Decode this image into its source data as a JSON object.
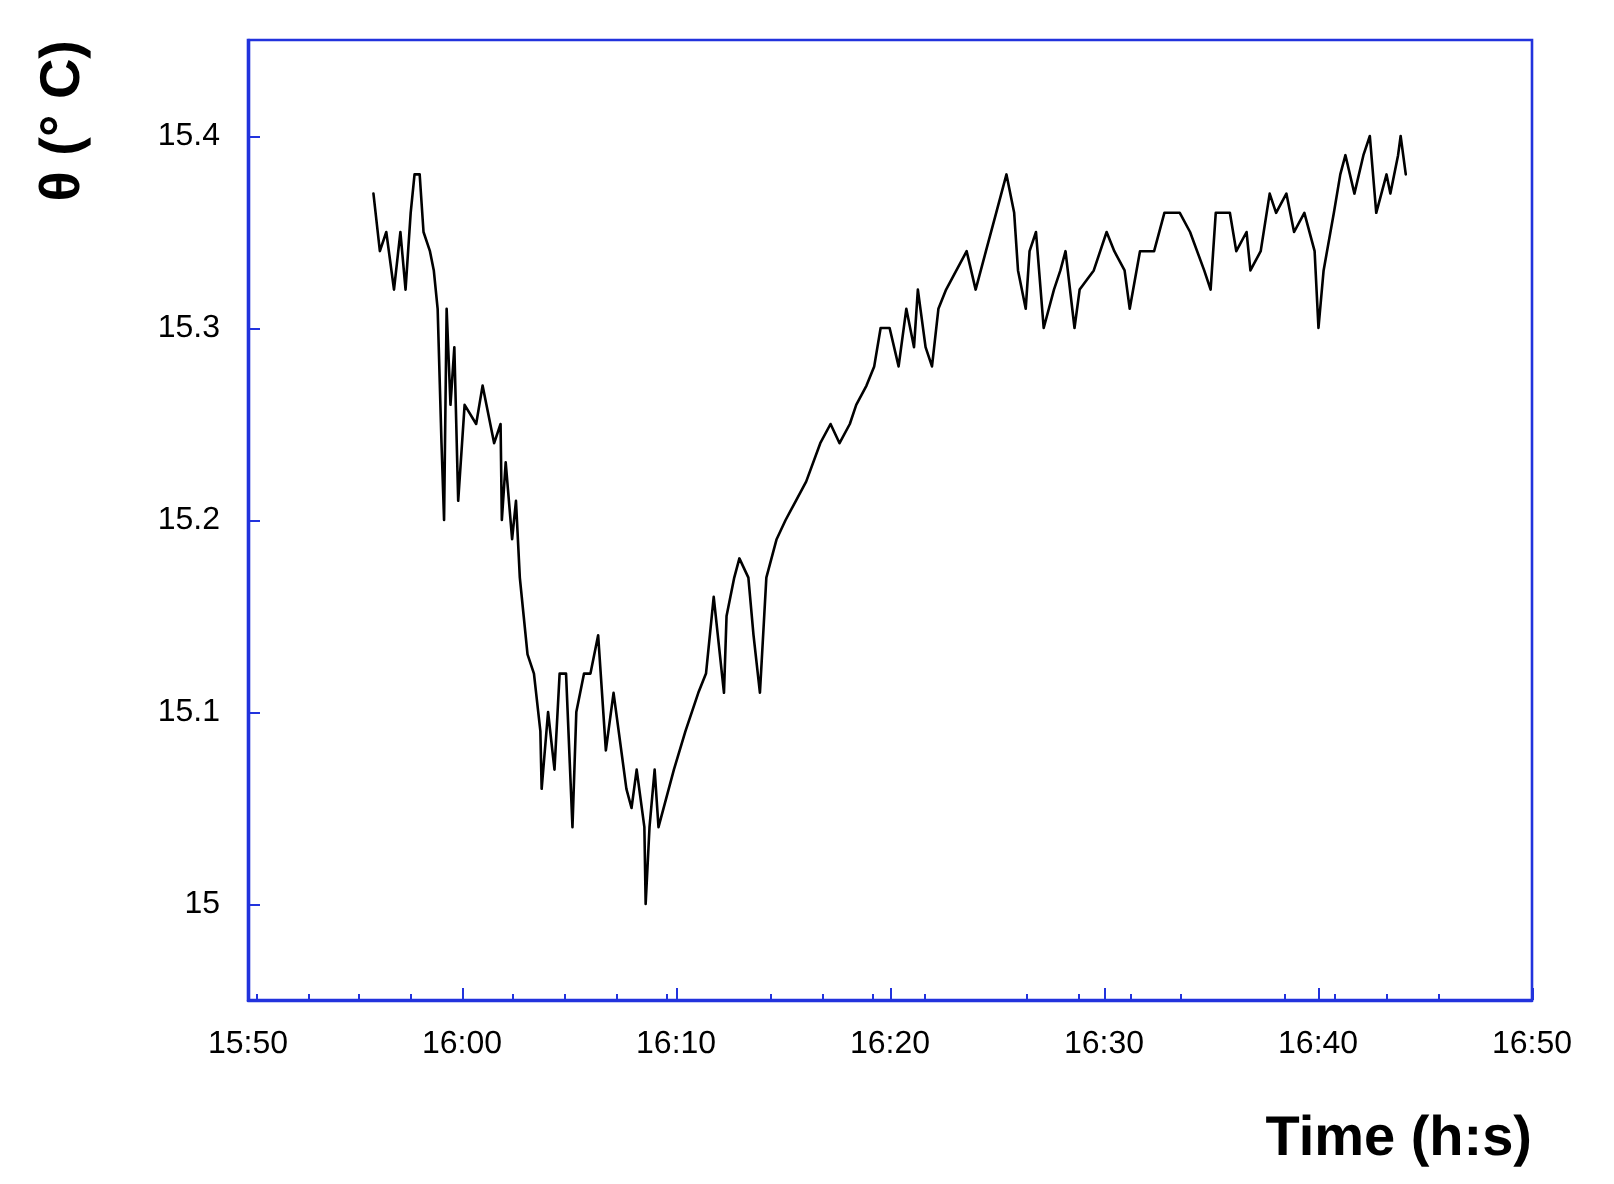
{
  "chart_data": {
    "type": "line",
    "xlabel": "Time (h:s)",
    "ylabel": "θ (° C)",
    "xlim": [
      15.8333,
      16.8333
    ],
    "ylim": [
      14.95,
      15.45
    ],
    "xticks": [
      {
        "value": 15.8333,
        "label": "15:50"
      },
      {
        "value": 16.0,
        "label": "16:00"
      },
      {
        "value": 16.1667,
        "label": "16:10"
      },
      {
        "value": 16.3333,
        "label": "16:20"
      },
      {
        "value": 16.5,
        "label": "16:30"
      },
      {
        "value": 16.6667,
        "label": "16:40"
      },
      {
        "value": 16.8333,
        "label": "16:50"
      }
    ],
    "yticks": [
      15,
      15.1,
      15.2,
      15.3,
      15.4
    ],
    "grid": false,
    "marker": "none",
    "line_style": "solid",
    "series": [
      {
        "color": "#000000",
        "x": [
          15.931,
          15.936,
          15.941,
          15.947,
          15.952,
          15.956,
          15.96,
          15.963,
          15.967,
          15.97,
          15.975,
          15.978,
          15.981,
          15.984,
          15.986,
          15.988,
          15.991,
          15.994,
          15.997,
          16.002,
          16.011,
          16.016,
          16.019,
          16.025,
          16.03,
          16.031,
          16.034,
          16.039,
          16.042,
          16.045,
          16.048,
          16.051,
          16.056,
          16.061,
          16.062,
          16.067,
          16.072,
          16.076,
          16.081,
          16.086,
          16.089,
          16.095,
          16.1,
          16.106,
          16.112,
          16.118,
          16.128,
          16.132,
          16.136,
          16.142,
          16.143,
          16.146,
          16.15,
          16.153,
          16.165,
          16.174,
          16.184,
          16.19,
          16.196,
          16.204,
          16.206,
          16.212,
          16.216,
          16.223,
          16.227,
          16.232,
          16.237,
          16.245,
          16.252,
          16.26,
          16.268,
          16.279,
          16.287,
          16.294,
          16.302,
          16.307,
          16.315,
          16.321,
          16.326,
          16.333,
          16.34,
          16.346,
          16.352,
          16.355,
          16.361,
          16.366,
          16.371,
          16.377,
          16.385,
          16.393,
          16.4,
          16.408,
          16.416,
          16.424,
          16.43,
          16.433,
          16.439,
          16.442,
          16.447,
          16.453,
          16.461,
          16.466,
          16.47,
          16.477,
          16.481,
          16.492,
          16.502,
          16.508,
          16.516,
          16.52,
          16.528,
          16.539,
          16.547,
          16.559,
          16.567,
          16.578,
          16.583,
          16.587,
          16.598,
          16.603,
          16.611,
          16.614,
          16.622,
          16.629,
          16.634,
          16.642,
          16.648,
          16.656,
          16.664,
          16.667,
          16.671,
          16.679,
          16.684,
          16.688,
          16.695,
          16.702,
          16.707,
          16.712,
          16.72,
          16.723,
          16.729,
          16.731,
          16.735
        ],
        "values": [
          15.37,
          15.34,
          15.35,
          15.32,
          15.35,
          15.32,
          15.36,
          15.38,
          15.38,
          15.35,
          15.34,
          15.33,
          15.31,
          15.24,
          15.2,
          15.31,
          15.26,
          15.29,
          15.21,
          15.26,
          15.25,
          15.27,
          15.26,
          15.24,
          15.25,
          15.2,
          15.23,
          15.19,
          15.21,
          15.17,
          15.15,
          15.13,
          15.12,
          15.09,
          15.06,
          15.1,
          15.07,
          15.12,
          15.12,
          15.04,
          15.1,
          15.12,
          15.12,
          15.14,
          15.08,
          15.11,
          15.06,
          15.05,
          15.07,
          15.04,
          15.0,
          15.04,
          15.07,
          15.04,
          15.07,
          15.09,
          15.11,
          15.12,
          15.16,
          15.11,
          15.15,
          15.17,
          15.18,
          15.17,
          15.14,
          15.11,
          15.17,
          15.19,
          15.2,
          15.21,
          15.22,
          15.24,
          15.25,
          15.24,
          15.25,
          15.26,
          15.27,
          15.28,
          15.3,
          15.3,
          15.28,
          15.31,
          15.29,
          15.32,
          15.29,
          15.28,
          15.31,
          15.32,
          15.33,
          15.34,
          15.32,
          15.34,
          15.36,
          15.38,
          15.36,
          15.33,
          15.31,
          15.34,
          15.35,
          15.3,
          15.32,
          15.33,
          15.34,
          15.3,
          15.32,
          15.33,
          15.35,
          15.34,
          15.33,
          15.31,
          15.34,
          15.34,
          15.36,
          15.36,
          15.35,
          15.33,
          15.32,
          15.36,
          15.36,
          15.34,
          15.35,
          15.33,
          15.34,
          15.37,
          15.36,
          15.37,
          15.35,
          15.36,
          15.34,
          15.3,
          15.33,
          15.36,
          15.38,
          15.39,
          15.37,
          15.39,
          15.4,
          15.36,
          15.38,
          15.37,
          15.39,
          15.4,
          15.38
        ]
      }
    ]
  }
}
